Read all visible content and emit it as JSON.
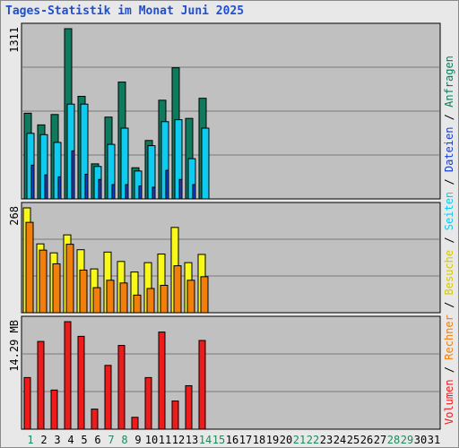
{
  "title": "Tages-Statistik im Monat Juni 2025",
  "colors": {
    "plot_bg": "#c0c0c0",
    "grid": "#7a7a7a",
    "anfragen": "#0e7b5e",
    "dateien": "#1a3ecc",
    "seiten": "#0ecbef",
    "besuche": "#f8f819",
    "rechner": "#f27f0c",
    "volumen": "#ef1a1a",
    "weekday_label": "#000000",
    "weekend_label": "#1e8a5e"
  },
  "side_legend": {
    "items": [
      {
        "text": "Volumen",
        "color": "#ef1a1a"
      },
      {
        "text": " / ",
        "color": "#000000"
      },
      {
        "text": "Rechner",
        "color": "#f27f0c"
      },
      {
        "text": " / ",
        "color": "#000000"
      },
      {
        "text": "Besuche",
        "color": "#d8c800"
      },
      {
        "text": " / ",
        "color": "#000000"
      },
      {
        "text": "Seiten",
        "color": "#0ecbef"
      },
      {
        "text": " / ",
        "color": "#000000"
      },
      {
        "text": "Dateien",
        "color": "#1a3ecc"
      },
      {
        "text": " / ",
        "color": "#000000"
      },
      {
        "text": "Anfragen",
        "color": "#0e7b5e"
      }
    ]
  },
  "chart_data": {
    "type": "bar",
    "x": [
      "1",
      "2",
      "3",
      "4",
      "5",
      "6",
      "7",
      "8",
      "9",
      "10",
      "11",
      "12",
      "13",
      "14",
      "15",
      "16",
      "17",
      "18",
      "19",
      "20",
      "21",
      "22",
      "23",
      "24",
      "25",
      "26",
      "27",
      "28",
      "29",
      "30",
      "31"
    ],
    "weekend_days": [
      "1",
      "7",
      "8",
      "14",
      "15",
      "21",
      "22",
      "28",
      "29"
    ],
    "panels": [
      {
        "ylabel": "1311",
        "ymax": 1311,
        "series": [
          {
            "name": "Anfragen",
            "values": [
              660,
              570,
              650,
              1311,
              790,
              270,
              630,
              900,
              240,
              450,
              760,
              1010,
              620,
              775,
              null,
              null,
              null,
              null,
              null,
              null,
              null,
              null,
              null,
              null,
              null,
              null,
              null,
              null,
              null,
              null,
              null
            ]
          },
          {
            "name": "Seiten",
            "values": [
              505,
              495,
              435,
              730,
              730,
              250,
              420,
              545,
              215,
              410,
              595,
              610,
              310,
              545,
              null,
              null,
              null,
              null,
              null,
              null,
              null,
              null,
              null,
              null,
              null,
              null,
              null,
              null,
              null,
              null,
              null
            ]
          },
          {
            "name": "Dateien",
            "values": [
              260,
              185,
              170,
              370,
              190,
              150,
              110,
              110,
              100,
              90,
              220,
              150,
              110,
              0,
              null,
              null,
              null,
              null,
              null,
              null,
              null,
              null,
              null,
              null,
              null,
              null,
              null,
              null,
              null,
              null,
              null
            ]
          }
        ]
      },
      {
        "ylabel": "268",
        "ymax": 268,
        "series": [
          {
            "name": "Besuche",
            "values": [
              268,
              176,
              153,
              199,
              161,
              112,
              155,
              131,
              104,
              128,
              150,
              218,
              128,
              149,
              null,
              null,
              null,
              null,
              null,
              null,
              null,
              null,
              null,
              null,
              null,
              null,
              null,
              null,
              null,
              null,
              null
            ]
          },
          {
            "name": "Rechner",
            "values": [
              231,
              160,
              125,
              175,
              109,
              64,
              83,
              76,
              45,
              62,
              70,
              120,
              83,
              92,
              null,
              null,
              null,
              null,
              null,
              null,
              null,
              null,
              null,
              null,
              null,
              null,
              null,
              null,
              null,
              null,
              null
            ]
          }
        ]
      },
      {
        "ylabel": "14.29 MB",
        "ymax": 14.29,
        "series": [
          {
            "name": "Volumen",
            "values": [
              6.86,
              11.66,
              5.2,
              14.29,
              12.34,
              2.67,
              8.48,
              11.13,
              1.58,
              6.86,
              12.91,
              3.75,
              5.78,
              11.79,
              null,
              null,
              null,
              null,
              null,
              null,
              null,
              null,
              null,
              null,
              null,
              null,
              null,
              null,
              null,
              null,
              null
            ]
          }
        ]
      }
    ]
  }
}
